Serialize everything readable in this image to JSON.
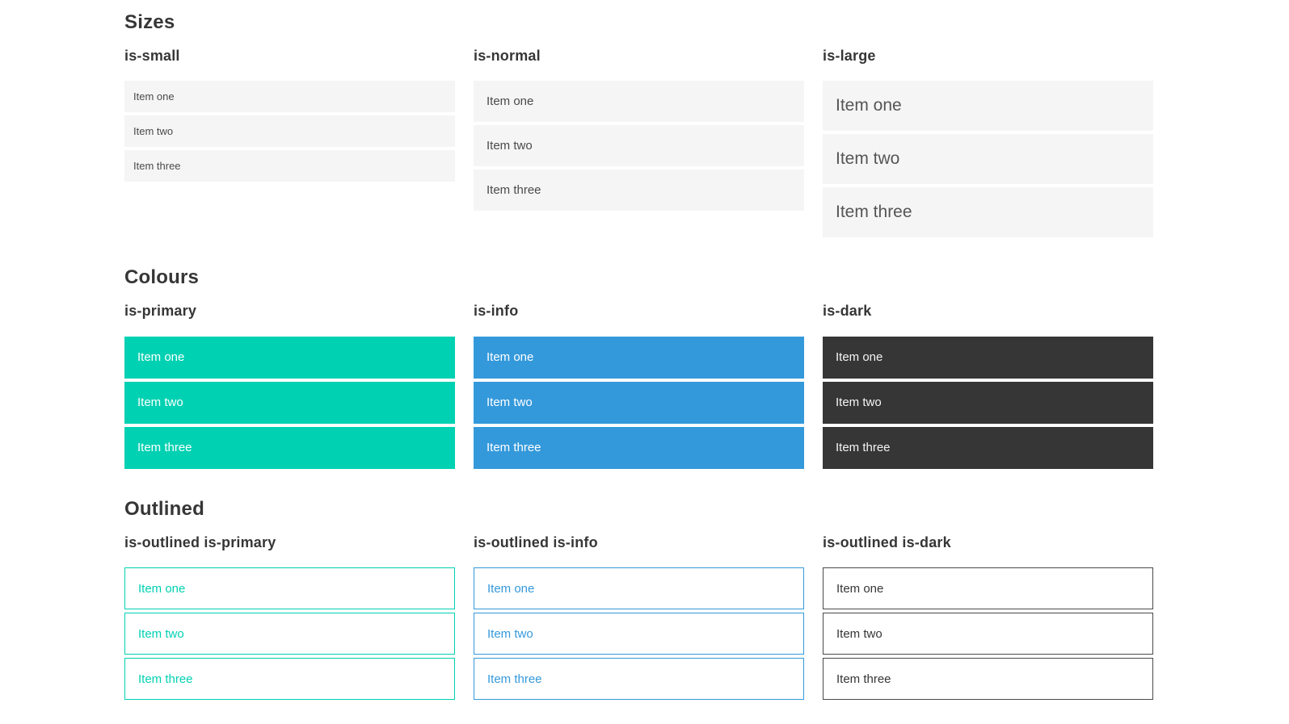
{
  "items_labels": [
    "Item one",
    "Item two",
    "Item three"
  ],
  "colors": {
    "primary": "#00d1b2",
    "info": "#3499db",
    "dark": "#363636",
    "light_item_background": "#f5f5f5",
    "item_text": "#4a4a4a",
    "heading_text": "#363636"
  },
  "sections": [
    {
      "title": "Sizes",
      "columns": [
        {
          "label": "is-small",
          "variant": "small",
          "items": [
            "Item one",
            "Item two",
            "Item three"
          ]
        },
        {
          "label": "is-normal",
          "variant": "normal",
          "items": [
            "Item one",
            "Item two",
            "Item three"
          ]
        },
        {
          "label": "is-large",
          "variant": "large",
          "items": [
            "Item one",
            "Item two",
            "Item three"
          ]
        }
      ]
    },
    {
      "title": "Colours",
      "columns": [
        {
          "label": "is-primary",
          "variant": "primary",
          "items": [
            "Item one",
            "Item two",
            "Item three"
          ]
        },
        {
          "label": "is-info",
          "variant": "info",
          "items": [
            "Item one",
            "Item two",
            "Item three"
          ]
        },
        {
          "label": "is-dark",
          "variant": "dark",
          "items": [
            "Item one",
            "Item two",
            "Item three"
          ]
        }
      ]
    },
    {
      "title": "Outlined",
      "columns": [
        {
          "label": "is-outlined is-primary",
          "variant": "outlined-primary",
          "items": [
            "Item one",
            "Item two",
            "Item three"
          ]
        },
        {
          "label": "is-outlined is-info",
          "variant": "outlined-info",
          "items": [
            "Item one",
            "Item two",
            "Item three"
          ]
        },
        {
          "label": "is-outlined is-dark",
          "variant": "outlined-dark",
          "items": [
            "Item one",
            "Item two",
            "Item three"
          ]
        }
      ]
    }
  ]
}
